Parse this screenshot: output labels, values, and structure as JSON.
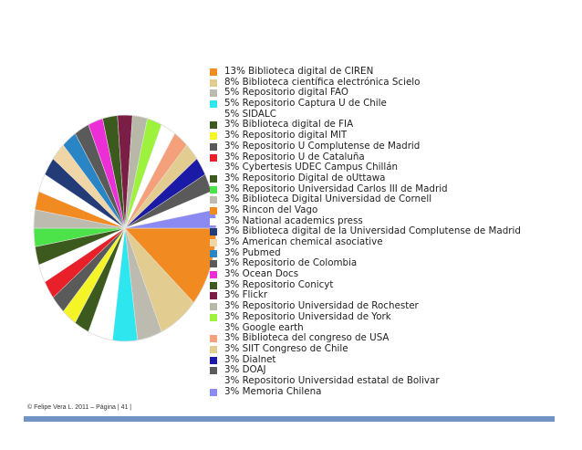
{
  "chart_data": {
    "type": "pie",
    "title": "",
    "legend_placement": "right",
    "slices": [
      {
        "label": "13% Biblioteca digital de CIREN",
        "value": 13,
        "color": "#f28a22"
      },
      {
        "label": "8% Biblioteca científica electrónica Scielo",
        "value": 8,
        "color": "#e3cc8f"
      },
      {
        "label": "5% Repositorio digital FAO",
        "value": 5,
        "color": "#bdbbb0"
      },
      {
        "label": "5% Repositorio Captura U de Chile",
        "value": 5,
        "color": "#2ee6ee"
      },
      {
        "label": "5% SIDALC",
        "value": 5,
        "color": "#ffffff"
      },
      {
        "label": "3% Biblioteca digital de FIA",
        "value": 3,
        "color": "#3c5a1e"
      },
      {
        "label": "3% Repositorio digital MIT",
        "value": 3,
        "color": "#f4f426"
      },
      {
        "label": "3% Repositorio U Complutense de Madrid",
        "value": 3,
        "color": "#5a5a5a"
      },
      {
        "label": "3% Repositorio U de Cataluña",
        "value": 3,
        "color": "#e8202a"
      },
      {
        "label": "3% Cybertesis UDEC Campus Chillán",
        "value": 3,
        "color": "#ffffff"
      },
      {
        "label": "3% Repositorio Digital de oUttawa",
        "value": 3,
        "color": "#3c5a1e"
      },
      {
        "label": "3% Repositorio Universidad Carlos III de Madrid",
        "value": 3,
        "color": "#4ce34a"
      },
      {
        "label": "3% Biblioteca Digital Universidad de Cornell",
        "value": 3,
        "color": "#bdbbb0"
      },
      {
        "label": "3% Rincon del Vago",
        "value": 3,
        "color": "#f28a22"
      },
      {
        "label": "3% National academics press",
        "value": 3,
        "color": "#ffffff"
      },
      {
        "label": "3% Biblioteca digital de la Universidad Complutense de Madrid",
        "value": 3,
        "color": "#233c78"
      },
      {
        "label": "3% American chemical asociative",
        "value": 3,
        "color": "#f0d6a6"
      },
      {
        "label": "3% Pubmed",
        "value": 3,
        "color": "#2a85c4"
      },
      {
        "label": "3% Repositorio de Colombia",
        "value": 3,
        "color": "#5a5a5a"
      },
      {
        "label": "3% Ocean Docs",
        "value": 3,
        "color": "#ec2ed6"
      },
      {
        "label": "3% Repositorio Conicyt",
        "value": 3,
        "color": "#3c5a1e"
      },
      {
        "label": "3% Flickr",
        "value": 3,
        "color": "#7a1e46"
      },
      {
        "label": "3% Repositorio Universidad de Rochester",
        "value": 3,
        "color": "#b8b8a8"
      },
      {
        "label": "3% Repositorio Universidad de York",
        "value": 3,
        "color": "#9cf23c"
      },
      {
        "label": "3% Google earth",
        "value": 3,
        "color": "#ffffff"
      },
      {
        "label": "3% Biblioteca del congreso de USA",
        "value": 3,
        "color": "#f4a07a"
      },
      {
        "label": "3% SIIT Congreso de Chile",
        "value": 3,
        "color": "#e3cc8f"
      },
      {
        "label": "3% Dialnet",
        "value": 3,
        "color": "#1a1aa6"
      },
      {
        "label": "3% DOAJ",
        "value": 3,
        "color": "#5a5a5a"
      },
      {
        "label": "3% Repositorio Universidad estatal de Bolivar",
        "value": 3,
        "color": "#ffffff"
      },
      {
        "label": "3% Memoria Chilena",
        "value": 3,
        "color": "#8a8af2"
      }
    ]
  },
  "footer": {
    "text": "© Felipe Vera L. 2011  –  Página | 41 |",
    "bar_color": "#6f93c2"
  }
}
